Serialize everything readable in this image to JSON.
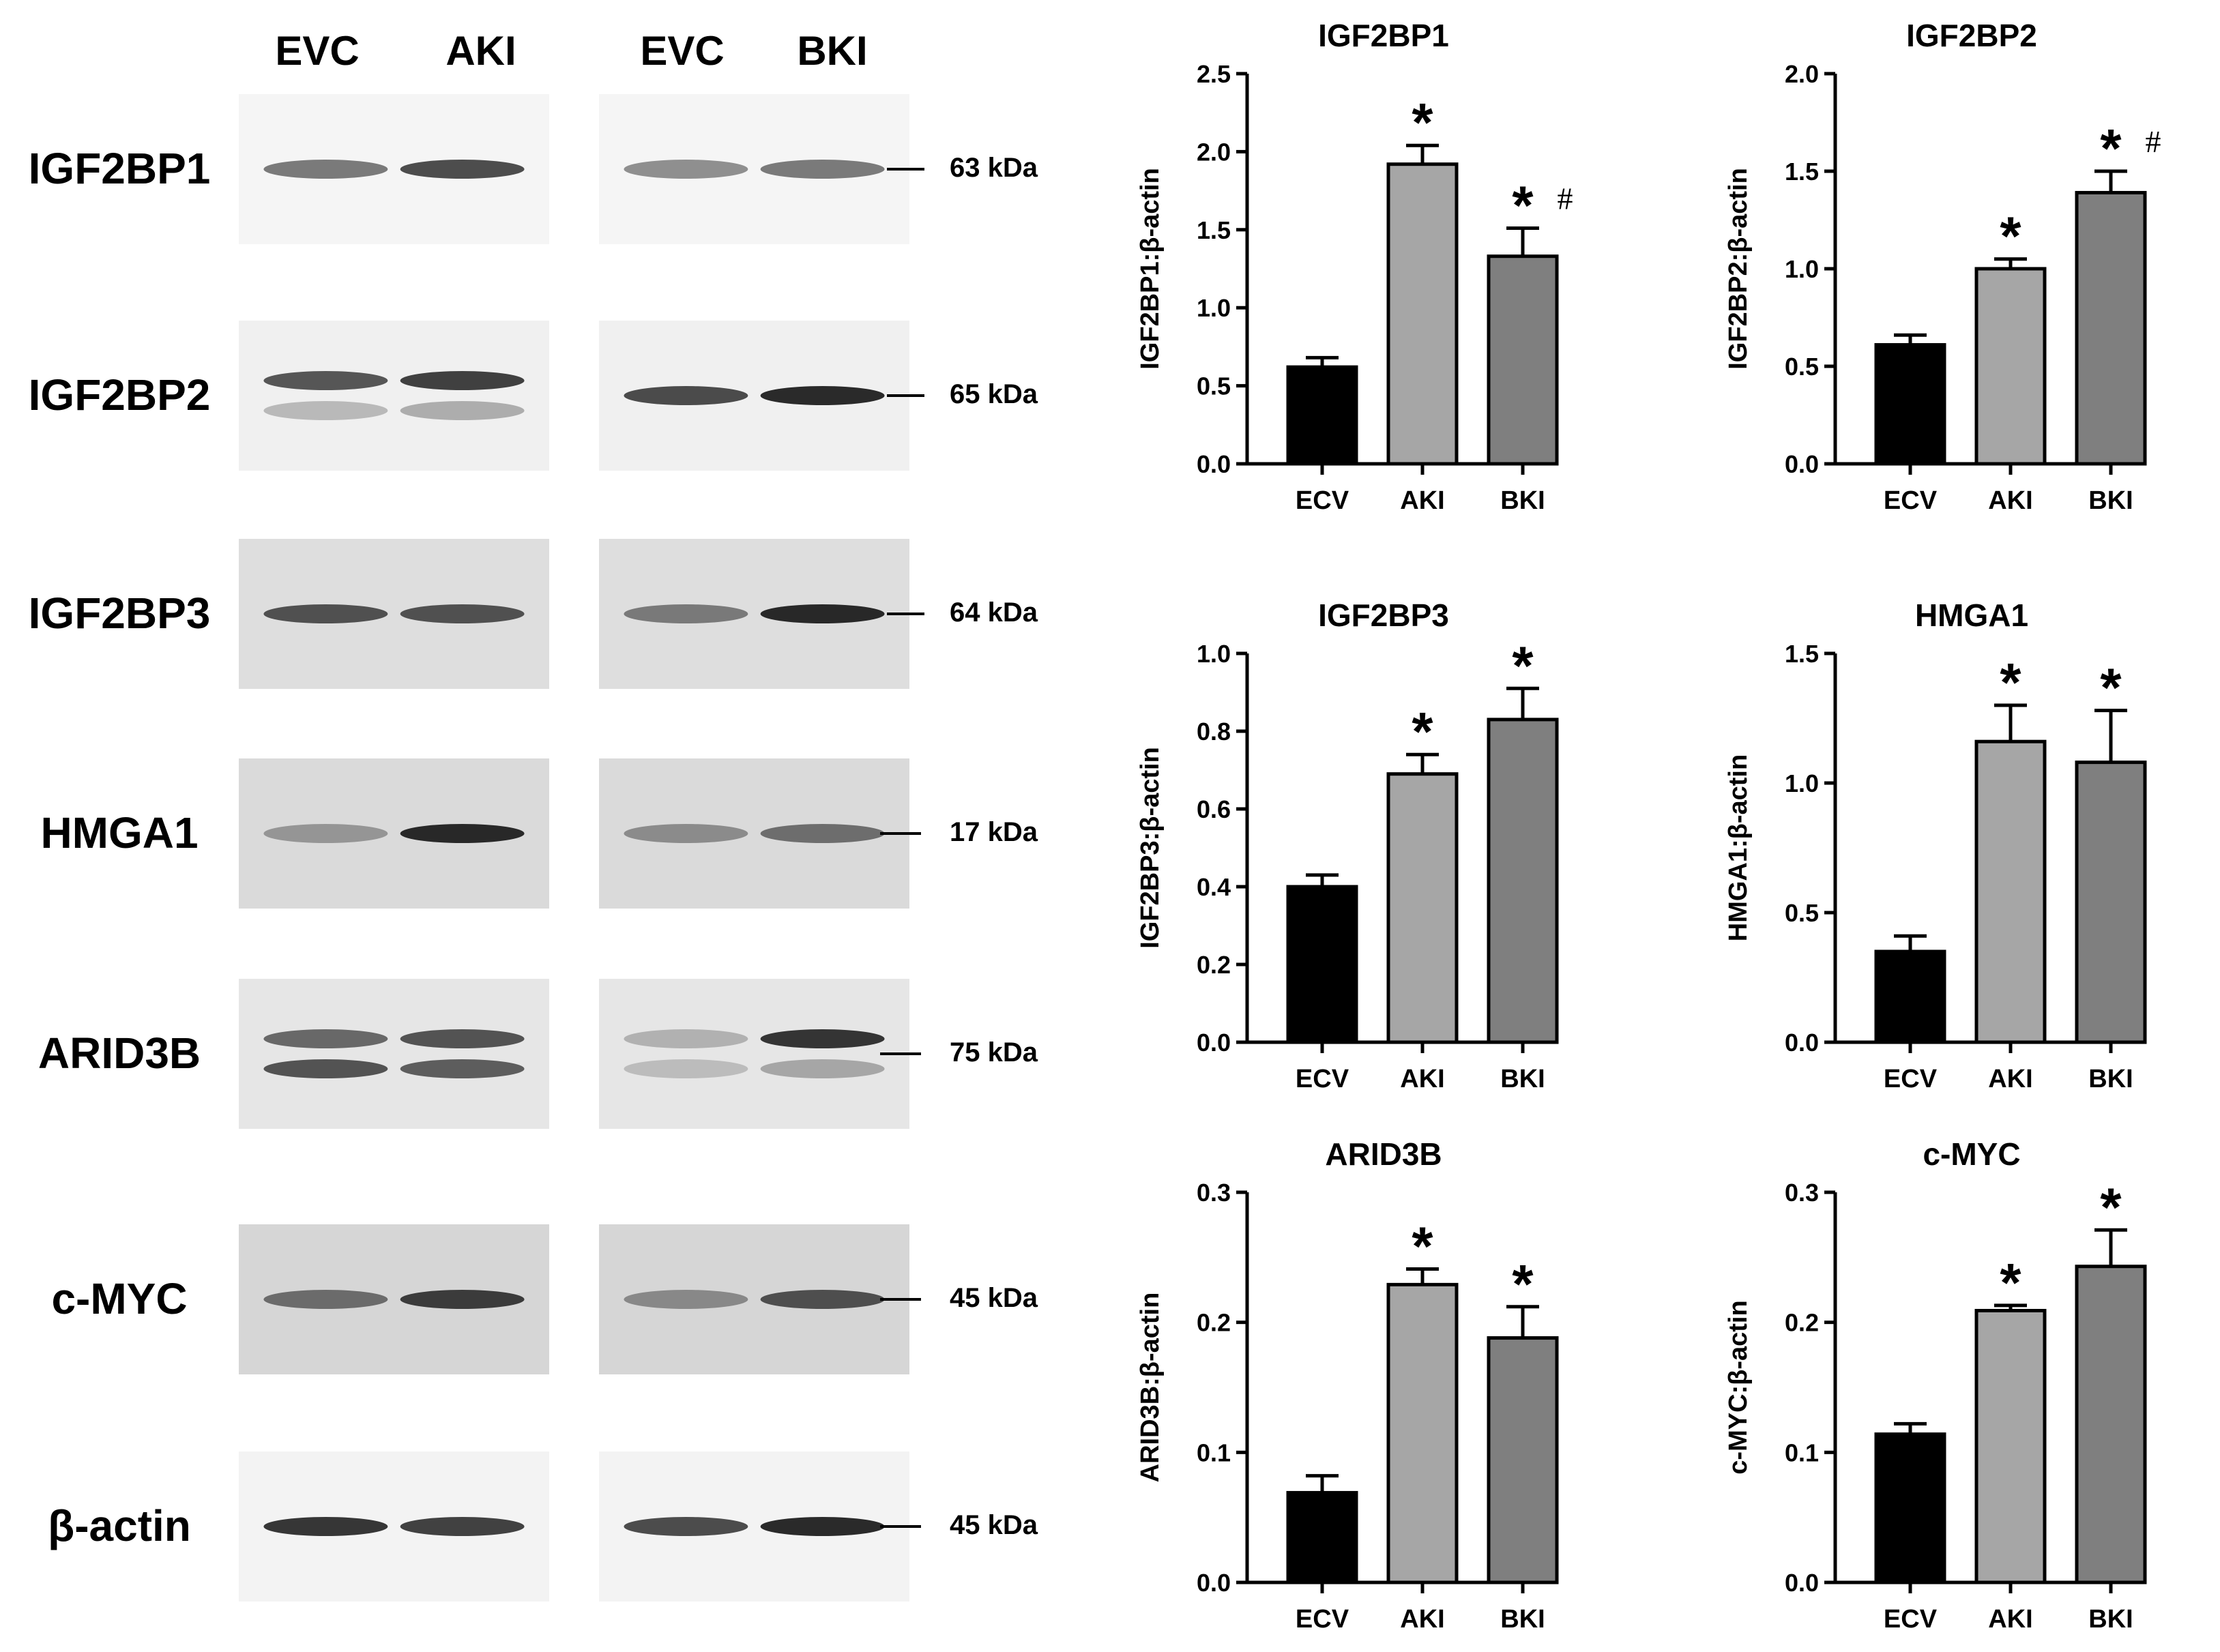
{
  "blots": {
    "lane_headers": [
      "EVC",
      "AKI",
      "EVC",
      "BKI"
    ],
    "rows": [
      {
        "protein": "IGF2BP1",
        "mw": "63 kDa"
      },
      {
        "protein": "IGF2BP2",
        "mw": "65 kDa"
      },
      {
        "protein": "IGF2BP3",
        "mw": "64 kDa"
      },
      {
        "protein": "HMGA1",
        "mw": "17 kDa"
      },
      {
        "protein": "ARID3B",
        "mw": "75 kDa"
      },
      {
        "protein": "c-MYC",
        "mw": "45 kDa"
      },
      {
        "protein": "β-actin",
        "mw": "45 kDa"
      }
    ]
  },
  "chart_data": [
    {
      "type": "bar",
      "title": "IGF2BP1",
      "ylabel": "IGF2BP1:β-actin",
      "categories": [
        "ECV",
        "AKI",
        "BKI"
      ],
      "values": [
        0.62,
        1.92,
        1.33
      ],
      "errors": [
        0.06,
        0.12,
        0.18
      ],
      "ylim": [
        0,
        2.5
      ],
      "yticks": [
        "0.0",
        "0.5",
        "1.0",
        "1.5",
        "2.0",
        "2.5"
      ],
      "ytick_values": [
        0,
        0.5,
        1.0,
        1.5,
        2.0,
        2.5
      ],
      "annotations": [
        "",
        "*",
        "* #"
      ],
      "colors": [
        "#000000",
        "#a6a6a6",
        "#7f7f7f"
      ]
    },
    {
      "type": "bar",
      "title": "IGF2BP2",
      "ylabel": "IGF2BP2:β-actin",
      "categories": [
        "ECV",
        "AKI",
        "BKI"
      ],
      "values": [
        0.61,
        1.0,
        1.39
      ],
      "errors": [
        0.05,
        0.05,
        0.11
      ],
      "ylim": [
        0,
        2.0
      ],
      "yticks": [
        "0.0",
        "0.5",
        "1.0",
        "1.5",
        "2.0"
      ],
      "ytick_values": [
        0,
        0.5,
        1.0,
        1.5,
        2.0
      ],
      "annotations": [
        "",
        "*",
        "* #"
      ],
      "colors": [
        "#000000",
        "#a6a6a6",
        "#7f7f7f"
      ]
    },
    {
      "type": "bar",
      "title": "IGF2BP3",
      "ylabel": "IGF2BP3:β-actin",
      "categories": [
        "ECV",
        "AKI",
        "BKI"
      ],
      "values": [
        0.4,
        0.69,
        0.83
      ],
      "errors": [
        0.03,
        0.05,
        0.08
      ],
      "ylim": [
        0,
        1.0
      ],
      "yticks": [
        "0.0",
        "0.2",
        "0.4",
        "0.6",
        "0.8",
        "1.0"
      ],
      "ytick_values": [
        0,
        0.2,
        0.4,
        0.6,
        0.8,
        1.0
      ],
      "annotations": [
        "",
        "*",
        "*"
      ],
      "colors": [
        "#000000",
        "#a6a6a6",
        "#7f7f7f"
      ]
    },
    {
      "type": "bar",
      "title": "HMGA1",
      "ylabel": "HMGA1:β-actin",
      "categories": [
        "ECV",
        "AKI",
        "BKI"
      ],
      "values": [
        0.35,
        1.16,
        1.08
      ],
      "errors": [
        0.06,
        0.14,
        0.2
      ],
      "ylim": [
        0,
        1.5
      ],
      "yticks": [
        "0.0",
        "0.5",
        "1.0",
        "1.5"
      ],
      "ytick_values": [
        0,
        0.5,
        1.0,
        1.5
      ],
      "annotations": [
        "",
        "*",
        "*"
      ],
      "colors": [
        "#000000",
        "#a6a6a6",
        "#7f7f7f"
      ]
    },
    {
      "type": "bar",
      "title": "ARID3B",
      "ylabel": "ARID3B:β-actin",
      "categories": [
        "ECV",
        "AKI",
        "BKI"
      ],
      "values": [
        0.069,
        0.229,
        0.188
      ],
      "errors": [
        0.013,
        0.012,
        0.024
      ],
      "ylim": [
        0,
        0.3
      ],
      "yticks": [
        "0.0",
        "0.1",
        "0.2",
        "0.3"
      ],
      "ytick_values": [
        0,
        0.1,
        0.2,
        0.3
      ],
      "annotations": [
        "",
        "*",
        "*"
      ],
      "colors": [
        "#000000",
        "#a6a6a6",
        "#7f7f7f"
      ]
    },
    {
      "type": "bar",
      "title": "c-MYC",
      "ylabel": "c-MYC:β-actin",
      "categories": [
        "ECV",
        "AKI",
        "BKI"
      ],
      "values": [
        0.114,
        0.209,
        0.243
      ],
      "errors": [
        0.008,
        0.004,
        0.028
      ],
      "ylim": [
        0,
        0.3
      ],
      "yticks": [
        "0.0",
        "0.1",
        "0.2",
        "0.3"
      ],
      "ytick_values": [
        0,
        0.1,
        0.2,
        0.3
      ],
      "annotations": [
        "",
        "*",
        "*"
      ],
      "colors": [
        "#000000",
        "#a6a6a6",
        "#7f7f7f"
      ]
    }
  ]
}
